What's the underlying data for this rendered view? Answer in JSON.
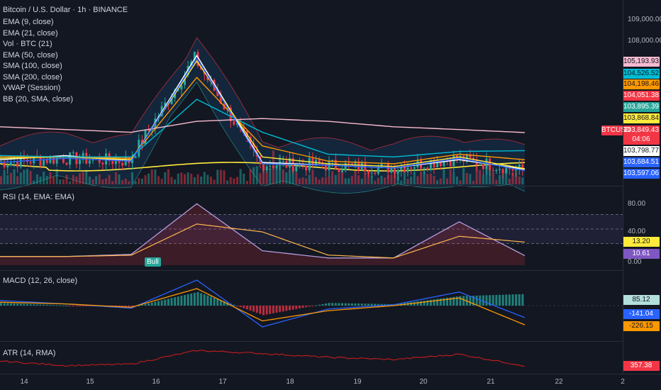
{
  "header": {
    "title": "Bitcoin / U.S. Dollar · 1h · BINANCE"
  },
  "main_indicators": [
    "EMA (9, close)",
    "EMA (21, close)",
    "Vol · BTC (21)",
    "EMA (50, close)",
    "SMA (100, close)",
    "SMA (200, close)",
    "VWAP (Session)",
    "BB (20, SMA, close)"
  ],
  "price_axis": {
    "ticks": [
      "109,000.00",
      "108,000.00"
    ]
  },
  "price_labels": [
    {
      "text": "105,193.93",
      "bg": "#f8bbd0",
      "fg": "#131722"
    },
    {
      "text": "104,526.52",
      "bg": "#00bcd4",
      "fg": "#131722"
    },
    {
      "text": "104,198.46",
      "bg": "#ff9800",
      "fg": "#131722"
    },
    {
      "text": "104,051.38",
      "bg": "#f23645",
      "fg": "#ffffff"
    },
    {
      "text": "103,895.39",
      "bg": "#26a69a",
      "fg": "#ffffff"
    },
    {
      "text": "103,868.84",
      "bg": "#ffeb3b",
      "fg": "#131722"
    },
    {
      "text": "103,849.43",
      "bg": "#f23645",
      "fg": "#ffffff"
    },
    {
      "text": "04:06",
      "bg": "#f23645",
      "fg": "#ffffff"
    },
    {
      "text": "103,798.77",
      "bg": "#ffffff",
      "fg": "#131722"
    },
    {
      "text": "103,684.51",
      "bg": "#2962ff",
      "fg": "#ffffff"
    },
    {
      "text": "103,597.06",
      "bg": "#2962ff",
      "fg": "#ffffff"
    }
  ],
  "symbol_tag": "BTCUSD",
  "rsi": {
    "label": "RSI (14, EMA: EMA)",
    "ticks": [
      "80.00",
      "40.00",
      "0.00"
    ],
    "value_labels": [
      {
        "text": "13.20",
        "bg": "#ffeb3b",
        "fg": "#131722"
      },
      {
        "text": "10.61",
        "bg": "#7e57c2",
        "fg": "#ffffff"
      }
    ],
    "bull_label": "Bull"
  },
  "macd": {
    "label": "MACD (12, 26, close)",
    "value_labels": [
      {
        "text": "85.12",
        "bg": "#b2dfdb",
        "fg": "#131722"
      },
      {
        "text": "-141.04",
        "bg": "#2962ff",
        "fg": "#ffffff"
      },
      {
        "text": "-226.15",
        "bg": "#ff9800",
        "fg": "#131722"
      }
    ]
  },
  "atr": {
    "label": "ATR (14, RMA)",
    "value_label": {
      "text": "357.38",
      "bg": "#f23645",
      "fg": "#ffffff"
    }
  },
  "x_axis": {
    "ticks": [
      "14",
      "15",
      "16",
      "17",
      "18",
      "19",
      "20",
      "21",
      "22",
      "2"
    ]
  },
  "chart_data": {
    "type": "line",
    "title": "Bitcoin / U.S. Dollar · 1h · BINANCE",
    "x": [
      "14",
      "15",
      "16",
      "17",
      "18",
      "19",
      "20",
      "21",
      "21.5"
    ],
    "series": [
      {
        "name": "EMA (9, close)",
        "values": [
          104200,
          104350,
          104150,
          108000,
          104100,
          104000,
          103900,
          104200,
          103850
        ]
      },
      {
        "name": "EMA (21, close)",
        "values": [
          104250,
          104300,
          104200,
          107800,
          104300,
          104050,
          103950,
          104300,
          103870
        ]
      },
      {
        "name": "EMA (50, close)",
        "values": [
          104300,
          104300,
          104250,
          107200,
          104700,
          104150,
          104050,
          104400,
          104200
        ]
      },
      {
        "name": "SMA (100, close)",
        "values": [
          104350,
          104300,
          104300,
          106400,
          105200,
          104400,
          104300,
          104500,
          104530
        ]
      },
      {
        "name": "SMA (200, close)",
        "values": [
          105400,
          105300,
          105200,
          105600,
          105700,
          105600,
          105400,
          105300,
          105190
        ]
      },
      {
        "name": "VWAP (Session)",
        "values": [
          104100,
          104250,
          104150,
          107900,
          104050,
          104000,
          103900,
          104250,
          103800
        ]
      }
    ],
    "rsi_series": [
      {
        "name": "RSI",
        "values": [
          12,
          12,
          15,
          85,
          20,
          10,
          10,
          60,
          13.2
        ]
      }
    ],
    "macd_series": [
      {
        "name": "MACD",
        "values": [
          60,
          20,
          -30,
          300,
          -250,
          -40,
          10,
          160,
          -141.04
        ]
      },
      {
        "name": "Signal",
        "values": [
          40,
          20,
          -20,
          200,
          -180,
          -60,
          0,
          90,
          -226.15
        ]
      }
    ],
    "atr_series": [
      {
        "name": "ATR",
        "values": [
          420,
          360,
          380,
          560,
          520,
          470,
          440,
          510,
          357.38
        ]
      }
    ],
    "ylim": [
      103300,
      109300
    ]
  }
}
